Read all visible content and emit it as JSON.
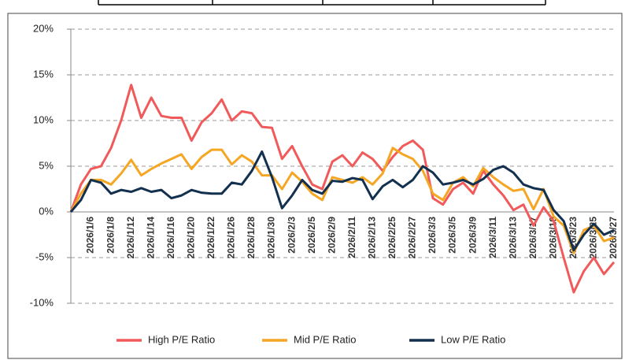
{
  "chart_data": {
    "type": "line",
    "categories": [
      null,
      null,
      "2026/1/6",
      null,
      "2026/1/8",
      null,
      "2026/1/12",
      null,
      "2026/1/14",
      null,
      "2026/1/16",
      null,
      "2026/1/20",
      null,
      "2026/1/22",
      null,
      "2026/1/26",
      null,
      "2026/1/28",
      null,
      "2026/1/30",
      null,
      "2026/2/3",
      null,
      "2026/2/5",
      null,
      "2026/2/9",
      null,
      "2026/2/11",
      null,
      "2026/2/13",
      null,
      "2026/2/25",
      null,
      "2026/2/27",
      null,
      "2026/3/3",
      null,
      "2026/3/5",
      null,
      "2026/3/9",
      null,
      "2026/3/11",
      null,
      "2026/3/13",
      null,
      "2026/3/17",
      null,
      "2026/3/19",
      null,
      "2026/3/23",
      null,
      "2026/3/25",
      null,
      "2026/3/27"
    ],
    "series": [
      {
        "name": "High P/E Ratio",
        "color": "#f05a5a",
        "values": [
          0,
          3.0,
          4.7,
          5.0,
          7.0,
          10.0,
          13.9,
          10.3,
          12.5,
          10.5,
          10.3,
          10.3,
          7.8,
          9.8,
          10.8,
          12.3,
          10.0,
          11.0,
          10.8,
          9.3,
          9.2,
          5.8,
          7.2,
          5.0,
          3.0,
          2.5,
          5.5,
          6.2,
          5.0,
          6.5,
          5.8,
          4.5,
          6.0,
          7.2,
          7.8,
          6.8,
          1.5,
          0.8,
          2.5,
          3.2,
          2.0,
          4.5,
          3.0,
          1.8,
          0.2,
          0.8,
          -1.5,
          0.5,
          -1.0,
          -5.0,
          -8.8,
          -6.5,
          -5.0,
          -6.8,
          -5.5
        ]
      },
      {
        "name": "Mid P/E Ratio",
        "color": "#f5a623",
        "values": [
          0,
          2.0,
          3.5,
          3.5,
          3.0,
          4.2,
          5.7,
          4.0,
          4.7,
          5.3,
          5.8,
          6.3,
          4.7,
          6.0,
          6.8,
          6.8,
          5.2,
          6.2,
          5.5,
          4.0,
          4.0,
          2.5,
          4.3,
          3.3,
          2.0,
          1.3,
          3.8,
          3.5,
          3.2,
          3.8,
          3.0,
          4.2,
          7.0,
          6.3,
          5.8,
          4.5,
          2.0,
          1.3,
          3.2,
          3.8,
          2.8,
          4.8,
          3.8,
          3.0,
          2.3,
          2.5,
          0.3,
          2.5,
          -0.5,
          -1.5,
          -4.5,
          -2.0,
          -1.5,
          -3.2,
          -2.8
        ]
      },
      {
        "name": "Low P/E Ratio",
        "color": "#13304f",
        "values": [
          0,
          1.3,
          3.5,
          3.2,
          2.0,
          2.4,
          2.2,
          2.6,
          2.2,
          2.4,
          1.5,
          1.8,
          2.4,
          2.1,
          2.0,
          2.0,
          3.2,
          3.0,
          4.5,
          6.6,
          3.8,
          0.4,
          1.8,
          3.5,
          2.4,
          2.0,
          3.4,
          3.3,
          3.7,
          3.5,
          1.4,
          2.8,
          3.5,
          2.7,
          3.5,
          5.0,
          4.3,
          3.0,
          3.2,
          3.5,
          3.0,
          3.6,
          4.6,
          5.0,
          4.3,
          3.0,
          2.6,
          2.4,
          0.2,
          -1.0,
          -4.2,
          -2.5,
          -1.3,
          -2.5,
          -2.0
        ]
      }
    ],
    "ylim": [
      -10,
      20
    ],
    "yticks": [
      {
        "value": -10,
        "label": "-10%"
      },
      {
        "value": -5,
        "label": "-5%"
      },
      {
        "value": 0,
        "label": "0%"
      },
      {
        "value": 5,
        "label": "5%"
      },
      {
        "value": 10,
        "label": "10%"
      },
      {
        "value": 15,
        "label": "15%"
      },
      {
        "value": 20,
        "label": "20%"
      }
    ],
    "grid": true,
    "legend": "bottom"
  }
}
